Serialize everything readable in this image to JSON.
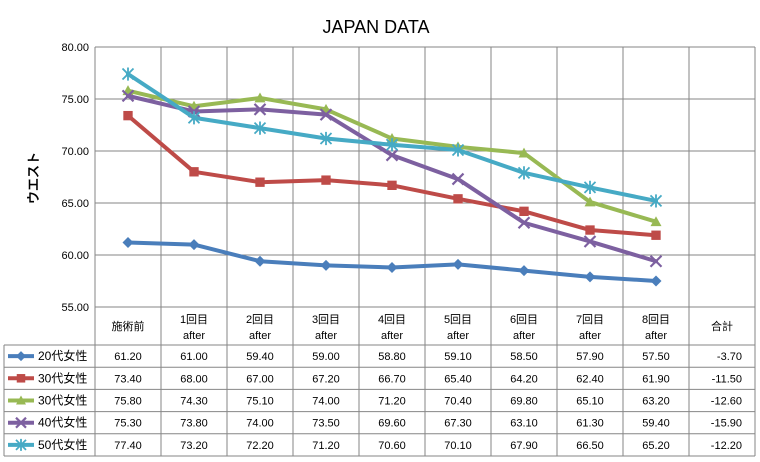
{
  "chart_data": {
    "type": "line",
    "title": "JAPAN DATA",
    "ylabel": "ウエスト",
    "xlabel": "",
    "ylim": [
      55,
      80
    ],
    "yticks": [
      "55.00",
      "60.00",
      "65.00",
      "70.00",
      "75.00",
      "80.00"
    ],
    "grid": true,
    "legend": "table-left",
    "categories": [
      {
        "line1": "施術前",
        "line2": ""
      },
      {
        "line1": "1回目",
        "line2": "after"
      },
      {
        "line1": "2回目",
        "line2": "after"
      },
      {
        "line1": "3回目",
        "line2": "after"
      },
      {
        "line1": "4回目",
        "line2": "after"
      },
      {
        "line1": "5回目",
        "line2": "after"
      },
      {
        "line1": "6回目",
        "line2": "after"
      },
      {
        "line1": "7回目",
        "line2": "after"
      },
      {
        "line1": "8回目",
        "line2": "after"
      }
    ],
    "total_header": "合計",
    "series": [
      {
        "name": "20代女性",
        "color": "#4a7ebb",
        "marker": "diamond",
        "values": [
          61.2,
          61.0,
          59.4,
          59.0,
          58.8,
          59.1,
          58.5,
          57.9,
          57.5
        ],
        "labels": [
          "61.20",
          "61.00",
          "59.40",
          "59.00",
          "58.80",
          "59.10",
          "58.50",
          "57.90",
          "57.50"
        ],
        "total": "-3.70"
      },
      {
        "name": "30代女性",
        "color": "#be4b48",
        "marker": "square",
        "values": [
          73.4,
          68.0,
          67.0,
          67.2,
          66.7,
          65.4,
          64.2,
          62.4,
          61.9
        ],
        "labels": [
          "73.40",
          "68.00",
          "67.00",
          "67.20",
          "66.70",
          "65.40",
          "64.20",
          "62.40",
          "61.90"
        ],
        "total": "-11.50"
      },
      {
        "name": "30代女性",
        "color": "#98b954",
        "marker": "triangle",
        "values": [
          75.8,
          74.3,
          75.1,
          74.0,
          71.2,
          70.4,
          69.8,
          65.1,
          63.2
        ],
        "labels": [
          "75.80",
          "74.30",
          "75.10",
          "74.00",
          "71.20",
          "70.40",
          "69.80",
          "65.10",
          "63.20"
        ],
        "total": "-12.60"
      },
      {
        "name": "40代女性",
        "color": "#7d60a0",
        "marker": "x",
        "values": [
          75.3,
          73.8,
          74.0,
          73.5,
          69.6,
          67.3,
          63.1,
          61.3,
          59.4
        ],
        "labels": [
          "75.30",
          "73.80",
          "74.00",
          "73.50",
          "69.60",
          "67.30",
          "63.10",
          "61.30",
          "59.40"
        ],
        "total": "-15.90"
      },
      {
        "name": "50代女性",
        "color": "#46aac5",
        "marker": "star",
        "values": [
          77.4,
          73.2,
          72.2,
          71.2,
          70.6,
          70.1,
          67.9,
          66.5,
          65.2
        ],
        "labels": [
          "77.40",
          "73.20",
          "72.20",
          "71.20",
          "70.60",
          "70.10",
          "67.90",
          "66.50",
          "65.20"
        ],
        "total": "-12.20"
      }
    ]
  }
}
